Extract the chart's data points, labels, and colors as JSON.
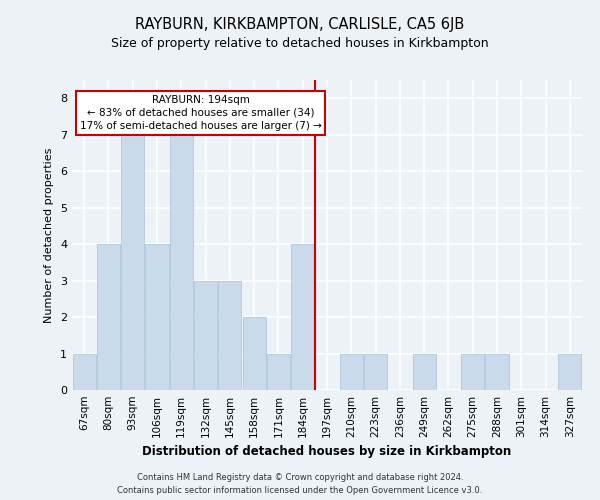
{
  "title": "RAYBURN, KIRKBAMPTON, CARLISLE, CA5 6JB",
  "subtitle": "Size of property relative to detached houses in Kirkbampton",
  "xlabel": "Distribution of detached houses by size in Kirkbampton",
  "ylabel": "Number of detached properties",
  "footer_line1": "Contains HM Land Registry data © Crown copyright and database right 2024.",
  "footer_line2": "Contains public sector information licensed under the Open Government Licence v3.0.",
  "categories": [
    "67sqm",
    "80sqm",
    "93sqm",
    "106sqm",
    "119sqm",
    "132sqm",
    "145sqm",
    "158sqm",
    "171sqm",
    "184sqm",
    "197sqm",
    "210sqm",
    "223sqm",
    "236sqm",
    "249sqm",
    "262sqm",
    "275sqm",
    "288sqm",
    "301sqm",
    "314sqm",
    "327sqm"
  ],
  "values": [
    1,
    4,
    7,
    4,
    7,
    3,
    3,
    2,
    1,
    4,
    0,
    1,
    1,
    0,
    1,
    0,
    1,
    1,
    0,
    0,
    1
  ],
  "bar_color": "#c9daea",
  "bar_edge_color": "#b0c8dc",
  "rayburn_label": "RAYBURN: 194sqm",
  "smaller_label": "← 83% of detached houses are smaller (34)",
  "larger_label": "17% of semi-detached houses are larger (7) →",
  "annotation_box_color": "#cc0000",
  "annotation_line_color": "#cc0000",
  "ylim": [
    0,
    8.5
  ],
  "yticks": [
    0,
    1,
    2,
    3,
    4,
    5,
    6,
    7,
    8
  ],
  "bg_color": "#edf2f7",
  "grid_color": "#ffffff",
  "title_fontsize": 10.5,
  "subtitle_fontsize": 9,
  "xlabel_fontsize": 8.5,
  "ylabel_fontsize": 8,
  "tick_fontsize": 7.5,
  "footer_fontsize": 6,
  "annotation_fontsize": 7.5
}
